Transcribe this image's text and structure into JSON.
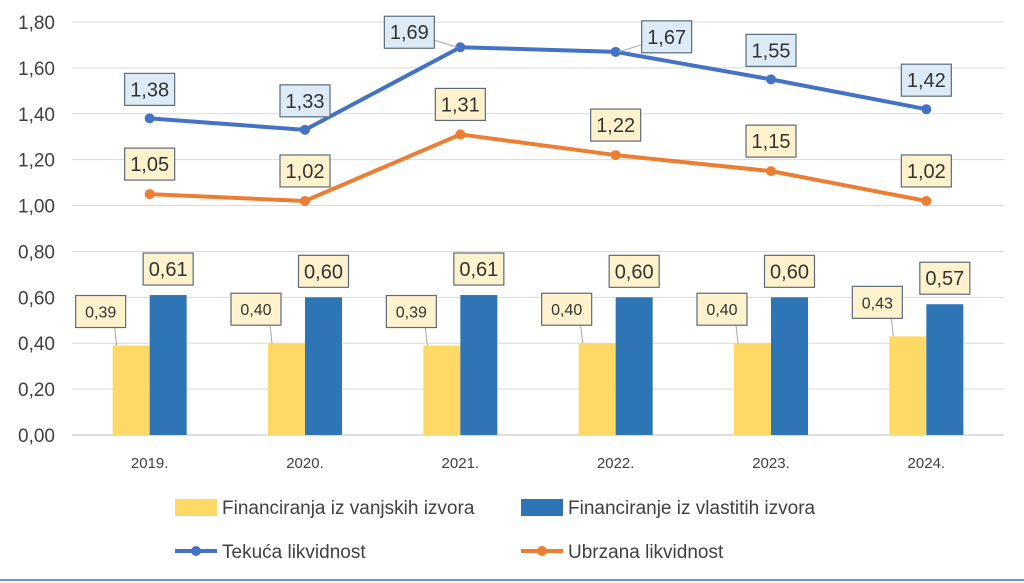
{
  "chart_data": {
    "type": "bar",
    "categories": [
      "2019.",
      "2020.",
      "2021.",
      "2022.",
      "2023.",
      "2024."
    ],
    "ylim": [
      0,
      1.8
    ],
    "yticks": [
      "0,00",
      "0,20",
      "0,40",
      "0,60",
      "0,80",
      "1,00",
      "1,20",
      "1,40",
      "1,60",
      "1,80"
    ],
    "ytick_values": [
      0,
      0.2,
      0.4,
      0.6,
      0.8,
      1.0,
      1.2,
      1.4,
      1.6,
      1.8
    ],
    "grid": true,
    "legend_position": "bottom",
    "bar_series": [
      {
        "name": "Financiranja iz vanjskih izvora",
        "color": "#FFD966",
        "values": [
          0.39,
          0.4,
          0.39,
          0.4,
          0.4,
          0.43
        ],
        "labels": [
          "0,39",
          "0,40",
          "0,39",
          "0,40",
          "0,40",
          "0,43"
        ]
      },
      {
        "name": "Financiranje iz vlastitih izvora",
        "color": "#2E75B6",
        "values": [
          0.61,
          0.6,
          0.61,
          0.6,
          0.6,
          0.57
        ],
        "labels": [
          "0,61",
          "0,60",
          "0,61",
          "0,60",
          "0,60",
          "0,57"
        ]
      }
    ],
    "line_series": [
      {
        "name": "Tekuća likvidnost",
        "color": "#4472C4",
        "label_fill": "#DDEBF7",
        "values": [
          1.38,
          1.33,
          1.69,
          1.67,
          1.55,
          1.42
        ],
        "labels": [
          "1,38",
          "1,33",
          "1,69",
          "1,67",
          "1,55",
          "1,42"
        ]
      },
      {
        "name": "Ubrzana likvidnost",
        "color": "#ED7D31",
        "label_fill": "#FFF2CC",
        "values": [
          1.05,
          1.02,
          1.31,
          1.22,
          1.15,
          1.02
        ],
        "labels": [
          "1,05",
          "1,02",
          "1,31",
          "1,22",
          "1,15",
          "1,02"
        ]
      }
    ],
    "bar_label_fill": "#FFF2CC",
    "axis_text_color": "#404040",
    "grid_color": "#D9D9D9"
  }
}
